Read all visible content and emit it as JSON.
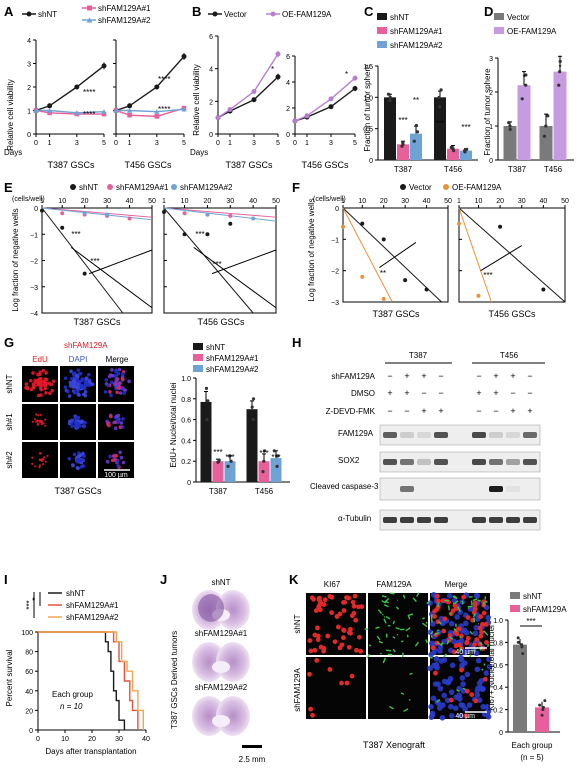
{
  "colors": {
    "black": "#1a1a1a",
    "pink": "#e8609a",
    "blue": "#6fa3d6",
    "orange": "#e8923a",
    "purple": "#b57fd0",
    "gray": "#777777",
    "vecGray": "#7a7a7a",
    "oePurple": "#c79be0",
    "red": "#d21f26"
  },
  "panelA": {
    "letter": "A",
    "legend": [
      "shNT",
      "shFAM129A#1",
      "shFAM129A#2"
    ],
    "ylabel": "Relative cell viability",
    "xlabel": "Days",
    "days": [
      "0",
      "1",
      "3",
      "5"
    ],
    "yticks": [
      "0",
      "1",
      "2",
      "3",
      "4"
    ],
    "titles": [
      "T387 GSCs",
      "T456 GSCs"
    ],
    "sig": [
      "****",
      "****"
    ]
  },
  "panelB": {
    "letter": "B",
    "legend": [
      "Vector",
      "OE-FAM129A"
    ],
    "ylabel": "Relative cell viability",
    "xlabel": "Days",
    "days": [
      "0",
      "1",
      "3",
      "5"
    ],
    "yticksLeft": [
      "0",
      "2",
      "4",
      "6"
    ],
    "yticksRight": [
      "0",
      "2",
      "4",
      "6"
    ],
    "titles": [
      "T387 GSCs",
      "T456 GSCs"
    ],
    "sig": "*"
  },
  "panelC": {
    "letter": "C",
    "legend": [
      "shNT",
      "shFAM129A#1",
      "shFAM129A#2"
    ],
    "ylabel": "Fraction of tumor sphere",
    "yticks": [
      "0",
      "0.5",
      "1.0",
      "1.5"
    ],
    "groups": [
      "T387",
      "T456"
    ],
    "sig": [
      "***",
      "**",
      "***",
      "***"
    ]
  },
  "panelD": {
    "letter": "D",
    "legend": [
      "Vector",
      "OE-FAM129A"
    ],
    "ylabel": "Fraction of tumor sphere",
    "yticks": [
      "0",
      "1",
      "2",
      "3"
    ],
    "groups": [
      "T387",
      "T456"
    ],
    "sig": [
      "*",
      "*"
    ]
  },
  "panelE": {
    "letter": "E",
    "legend": [
      "shNT",
      "shFAM129A#1",
      "shFAM129A#2"
    ],
    "unit": "(cells/well)",
    "xticks": [
      "1",
      "10",
      "20",
      "30",
      "40",
      "50"
    ],
    "yticks": [
      "0",
      "−1",
      "−2",
      "−3",
      "−4"
    ],
    "ylabel": "Log fraction of negative wells",
    "titles": [
      "T387 GSCs",
      "T456 GSCs"
    ],
    "sig": [
      "***",
      "***",
      "***",
      "***"
    ]
  },
  "panelF": {
    "letter": "F",
    "legend": [
      "Vector",
      "OE-FAM129A"
    ],
    "unit": "(cells/well)",
    "xticks": [
      "1",
      "10",
      "20",
      "30",
      "40",
      "50"
    ],
    "yticks": [
      "0",
      "−1",
      "−2",
      "−3"
    ],
    "ylabel": "Log fraction of negative wells",
    "titles": [
      "T387 GSCs",
      "T456 GSCs"
    ],
    "sig": [
      "**",
      "***"
    ]
  },
  "panelG": {
    "letter": "G",
    "header": "shFAM129A",
    "cols": [
      "EdU",
      "DAPI",
      "Merge"
    ],
    "rows": [
      "shNT",
      "sh#1",
      "sh#2"
    ],
    "scale": "100 µm",
    "caption": "T387 GSCs",
    "legend": [
      "shNT",
      "shFAM129A#1",
      "shFAM129A#2"
    ],
    "ylabel": "EdU+ Nuclei/total nuclei",
    "yticks": [
      "0",
      "0.2",
      "0.4",
      "0.6",
      "0.8",
      "1.0"
    ],
    "groups": [
      "T387",
      "T456"
    ],
    "sig": [
      "***",
      "***",
      "***",
      "***"
    ]
  },
  "panelH": {
    "letter": "H",
    "groups": [
      "T387",
      "T456"
    ],
    "rowLabels": [
      "shFAM129A",
      "DMSO",
      "Z-DEVD-FMK"
    ],
    "signs": [
      [
        "−",
        "+",
        "+",
        "−",
        "−",
        "+",
        "+",
        "−"
      ],
      [
        "+",
        "+",
        "−",
        "−",
        "+",
        "+",
        "−",
        "−"
      ],
      [
        "−",
        "−",
        "+",
        "+",
        "−",
        "−",
        "+",
        "+"
      ]
    ],
    "blots": [
      "FAM129A",
      "SOX2",
      "Cleaved caspase-3",
      "α-Tubulin"
    ]
  },
  "panelI": {
    "letter": "I",
    "legend": [
      "shNT",
      "shFAM129A#1",
      "shFAM129A#2"
    ],
    "ylabel": "Percent survival",
    "xlabel": "Days after transplantation",
    "yticks": [
      "0",
      "20",
      "40",
      "60",
      "80",
      "100"
    ],
    "xticks": [
      "0",
      "10",
      "20",
      "30",
      "40"
    ],
    "note1": "Each group",
    "note2": "n = 10",
    "sig": [
      "***",
      "*"
    ]
  },
  "panelJ": {
    "letter": "J",
    "labels": [
      "shNT",
      "shFAM129A#1",
      "shFAM129A#2"
    ],
    "side": "T387 GSCs Derived tumors",
    "scale": "2.5 mm"
  },
  "panelK": {
    "letter": "K",
    "cols": [
      "KI67",
      "FAM129A",
      "Merge"
    ],
    "rows": [
      "shNT",
      "shFAM129A"
    ],
    "scale": "40 µm",
    "caption": "T387 Xenograft",
    "legend": [
      "shNT",
      "shFAM129A"
    ],
    "ylabel": "Ki67+ Nuclei/total nuclei",
    "yticks": [
      "0",
      "0.2",
      "0.4",
      "0.6",
      "0.8",
      "1.0"
    ],
    "note1": "Each group",
    "note2": "(n = 5)",
    "sig": "***"
  }
}
